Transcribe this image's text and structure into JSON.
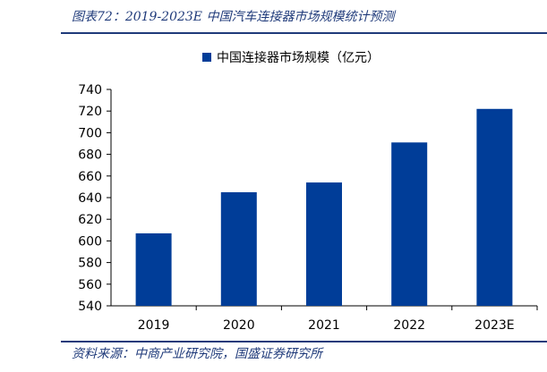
{
  "header": {
    "figure_title": "图表72：2019-2023E 中国汽车连接器市场规模统计预测"
  },
  "footer": {
    "source": "资料来源：中商产业研究院，国盛证券研究所"
  },
  "chart_data": {
    "type": "bar",
    "categories": [
      "2019",
      "2020",
      "2021",
      "2022",
      "2023E"
    ],
    "series": [
      {
        "name": "中国连接器市场规模（亿元）",
        "values": [
          607,
          645,
          654,
          691,
          722
        ],
        "color": "#003d98"
      }
    ],
    "ylim": [
      540,
      740
    ],
    "yticks": [
      540,
      560,
      580,
      600,
      620,
      640,
      660,
      680,
      700,
      720,
      740
    ],
    "grid": false,
    "legend_position": "top"
  }
}
